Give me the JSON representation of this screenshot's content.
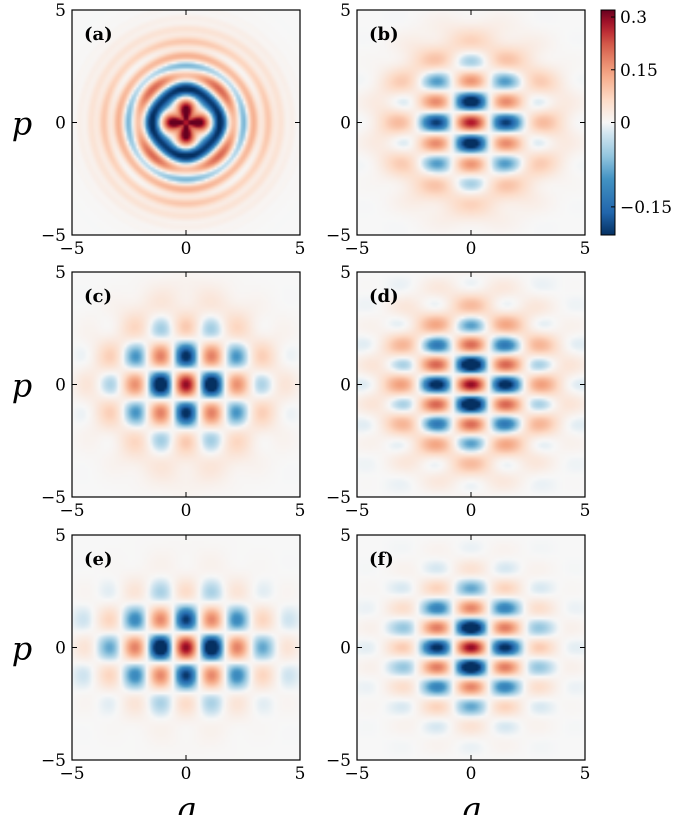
{
  "chart_data": {
    "type": "heatmap",
    "layout": "3 rows x 2 columns of Wigner-function density maps",
    "xlabel": "q",
    "ylabel": "p",
    "xlim": [
      -5,
      5
    ],
    "ylim": [
      -5,
      5
    ],
    "x_ticks": [
      "−5",
      "0",
      "5"
    ],
    "y_ticks": [
      "−5",
      "0",
      "5"
    ],
    "colormap": "diverging blue-white-red (RdBu_r)",
    "colorbar": {
      "vmin": -0.2,
      "vmax": 0.32,
      "ticks": [
        {
          "value": 0.3,
          "label": "0.3"
        },
        {
          "value": 0.15,
          "label": "0.15"
        },
        {
          "value": 0,
          "label": "0"
        },
        {
          "value": -0.15,
          "label": "−0.15"
        }
      ],
      "colors": {
        "deep_blue": "#053061",
        "blue": "#2166ac",
        "light_blue": "#92c5de",
        "white": "#f7f7f7",
        "light_red": "#f4a582",
        "red": "#d6604d",
        "deep_red": "#67001f"
      }
    },
    "panels": [
      {
        "label": "(a)",
        "pattern": "ring",
        "peak_value": 0.3
      },
      {
        "label": "(b)",
        "pattern": "vertical-fringes",
        "peak_value": 0.3
      },
      {
        "label": "(c)",
        "pattern": "horizontal-grid",
        "peak_value": 0.3
      },
      {
        "label": "(d)",
        "pattern": "vertical-grid",
        "peak_value": 0.3
      },
      {
        "label": "(e)",
        "pattern": "horizontal-grid-sharp",
        "peak_value": 0.3
      },
      {
        "label": "(f)",
        "pattern": "vertical-grid-sharp",
        "peak_value": 0.3
      }
    ]
  }
}
